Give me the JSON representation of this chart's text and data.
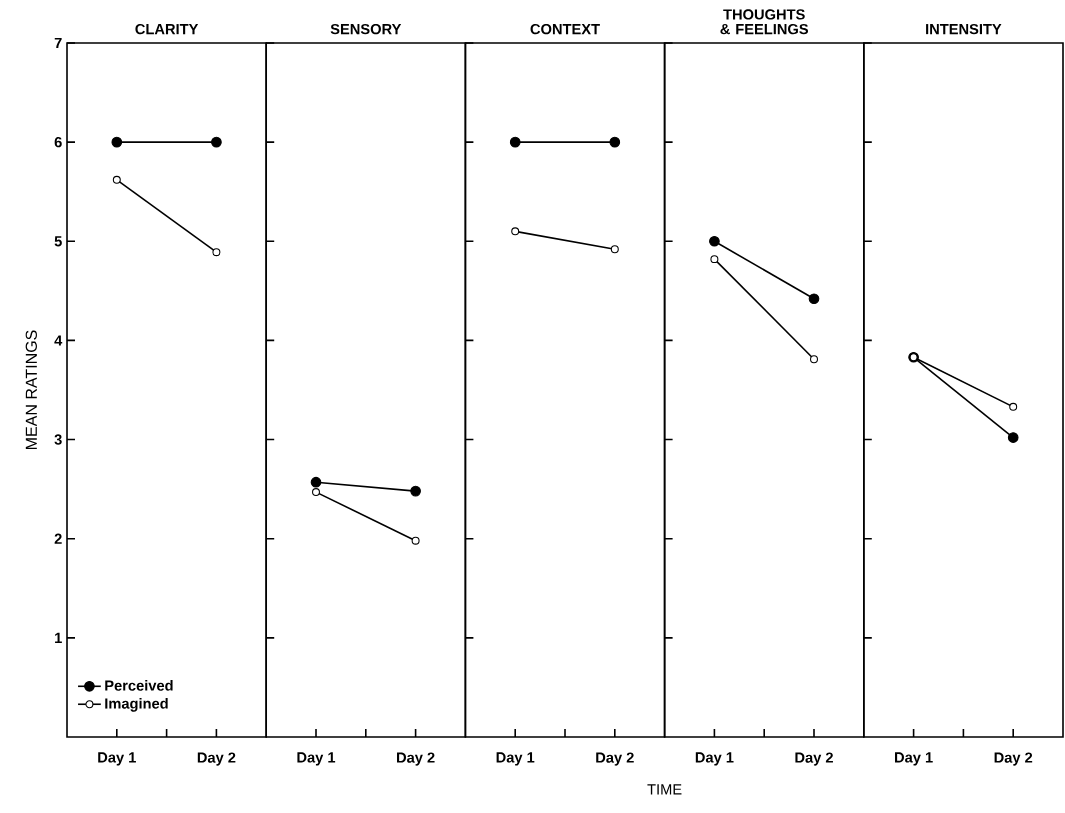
{
  "chart_data": [
    {
      "type": "line",
      "title": "CLARITY",
      "ylabel": "MEAN RATINGS",
      "categories": [
        "Day 1",
        "Day 2"
      ],
      "ylim": [
        0,
        7
      ],
      "yticks": [
        1,
        2,
        3,
        4,
        5,
        6,
        7
      ],
      "legend": "bottom left",
      "marker": "circle",
      "series": [
        {
          "name": "Perceived",
          "color": "#000000",
          "values": [
            6.0,
            6.0
          ]
        },
        {
          "name": "Imagined",
          "color": "#000000",
          "values": [
            5.62,
            4.89
          ]
        }
      ]
    },
    {
      "type": "line",
      "title": "SENSORY",
      "categories": [
        "Day 1",
        "Day 2"
      ],
      "ylim": [
        0,
        7
      ],
      "yticks": [
        1,
        2,
        3,
        4,
        5,
        6,
        7
      ],
      "tick_labels": "x",
      "marker": "circle",
      "series": [
        {
          "color": "#000000",
          "values": [
            2.57,
            2.48
          ]
        },
        {
          "color": "#000000",
          "values": [
            2.47,
            1.98
          ]
        }
      ]
    },
    {
      "type": "line",
      "title": "CONTEXT",
      "xlabel": "TIME",
      "categories": [
        "Day 1",
        "Day 2"
      ],
      "ylim": [
        0,
        7
      ],
      "yticks": [
        1,
        2,
        3,
        4,
        5,
        6,
        7
      ],
      "tick_labels": "x",
      "marker": "circle",
      "series": [
        {
          "color": "#000000",
          "values": [
            6.0,
            6.0
          ]
        },
        {
          "color": "#000000",
          "values": [
            5.1,
            4.92
          ]
        }
      ]
    },
    {
      "type": "line",
      "title": "THOUGHTS & FEELINGS",
      "categories": [
        "Day 1",
        "Day 2"
      ],
      "ylim": [
        0,
        7
      ],
      "yticks": [
        1,
        2,
        3,
        4,
        5,
        6,
        7
      ],
      "tick_labels": "x",
      "marker": "circle",
      "series": [
        {
          "color": "#000000",
          "values": [
            5.0,
            4.42
          ]
        },
        {
          "color": "#000000",
          "values": [
            4.82,
            3.81
          ]
        }
      ]
    },
    {
      "type": "line",
      "title": "INTENSITY",
      "categories": [
        "Day 1",
        "Day 2"
      ],
      "ylim": [
        0,
        7
      ],
      "yticks": [
        1,
        2,
        3,
        4,
        5,
        6,
        7
      ],
      "tick_labels": "x",
      "marker": "circle",
      "series": [
        {
          "color": "#000000",
          "values": [
            3.83,
            3.02
          ]
        },
        {
          "color": "#000000",
          "values": [
            3.83,
            3.33
          ]
        }
      ]
    }
  ]
}
